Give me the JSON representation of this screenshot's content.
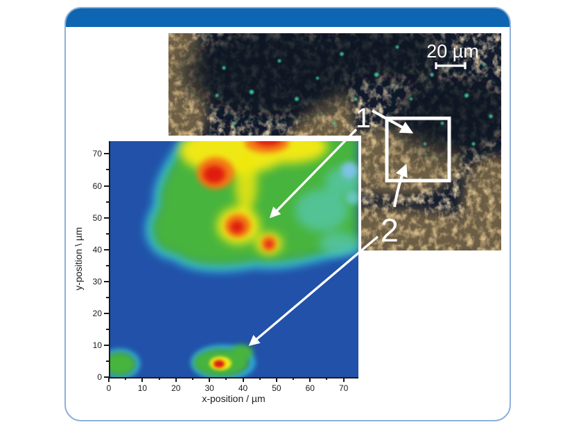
{
  "card": {
    "accent_color": "#0e66b2",
    "border_color": "#8fb0d8",
    "background": "#ffffff"
  },
  "micrograph": {
    "description": "dark-field optical micrograph: gold marbled phases on dark navy background with scattered green-teal speckles",
    "scale_bar_label": "20 µm",
    "roi_box": "white square outline marking the mapped region, linked to labels 1 and 2"
  },
  "annotations": {
    "one": "1",
    "two": "2"
  },
  "chart_data": {
    "type": "heatmap",
    "title": "",
    "xlabel": "x-position / µm",
    "ylabel": "y-position \\ µm",
    "xlim": [
      0,
      74
    ],
    "ylim": [
      0,
      74
    ],
    "x_ticks": [
      0,
      10,
      20,
      30,
      40,
      50,
      60,
      70
    ],
    "y_ticks": [
      0,
      10,
      20,
      30,
      40,
      50,
      60,
      70
    ],
    "minor_tick_step": 5,
    "grid": false,
    "legend": "none",
    "colormap": "rainbow/jet (blue = low, green = medium, yellow-orange = high, red = maximum)",
    "background_level": "low intensity (deep blue)",
    "regions": [
      {
        "name": "elevated-plateau",
        "desc": "green medium-intensity plateau with cyan fringe",
        "x_range": [
          13,
          74
        ],
        "y_range": [
          33,
          74
        ]
      },
      {
        "name": "top-band",
        "desc": "yellow high-intensity band along top edge",
        "x_range": [
          22,
          57
        ],
        "y_range": [
          66,
          74
        ]
      },
      {
        "name": "cool-dip",
        "desc": "pale-blue low dip inside plateau",
        "x": 72,
        "y": 64
      },
      {
        "name": "aqua-zone",
        "desc": "teal transition area on right side of plateau",
        "x_range": [
          58,
          74
        ],
        "y_range": [
          38,
          58
        ]
      },
      {
        "name": "bottom-left-spot",
        "desc": "isolated green spot",
        "x": 3,
        "y": 4
      },
      {
        "name": "bottom-middle-spot",
        "desc": "green spot with yellow ring and red core, tail toward (42,10)",
        "x": 33,
        "y": 4
      }
    ],
    "hotspots": [
      {
        "x": 32,
        "y": 64,
        "level": "max (red)"
      },
      {
        "x": 47,
        "y": 73,
        "level": "max (red-orange)"
      },
      {
        "x": 38,
        "y": 47,
        "level": "max (red)"
      },
      {
        "x": 48,
        "y": 41,
        "level": "max (red)"
      },
      {
        "x": 33,
        "y": 4,
        "level": "high (red core)"
      }
    ],
    "annotation_arrows": [
      {
        "label": "1",
        "points_to_map": [
          48,
          49
        ],
        "points_to_roi": "upper dark half of white square"
      },
      {
        "label": "2",
        "points_to_map": [
          42,
          9
        ],
        "points_to_roi": "lower marbled half of white square"
      }
    ]
  }
}
